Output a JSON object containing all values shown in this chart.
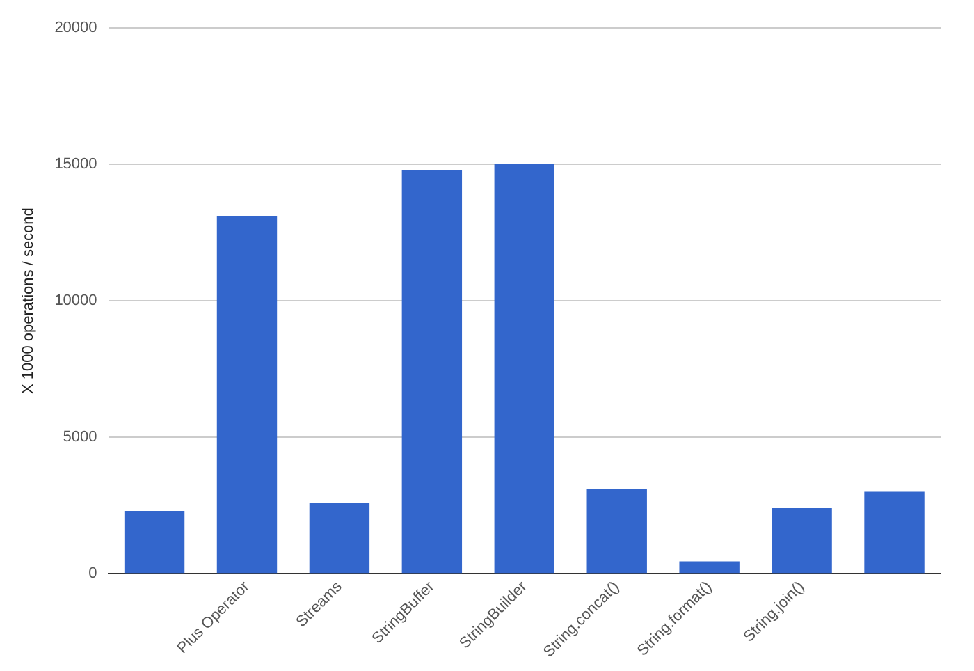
{
  "chart_data": {
    "type": "bar",
    "ylabel": "X 1000 operations / second",
    "categories": [
      null,
      "Plus Operator",
      "Streams",
      "StringBuffer",
      "StringBuilder",
      "String.concat()",
      "String.format()",
      "String.join()",
      null
    ],
    "values": [
      2300,
      13100,
      2600,
      14800,
      15000,
      3100,
      450,
      2400,
      3000
    ],
    "color": "#3366cc",
    "ylim": [
      0,
      20000
    ],
    "yticks": [
      0,
      5000,
      10000,
      15000,
      20000
    ],
    "grid": "y"
  }
}
